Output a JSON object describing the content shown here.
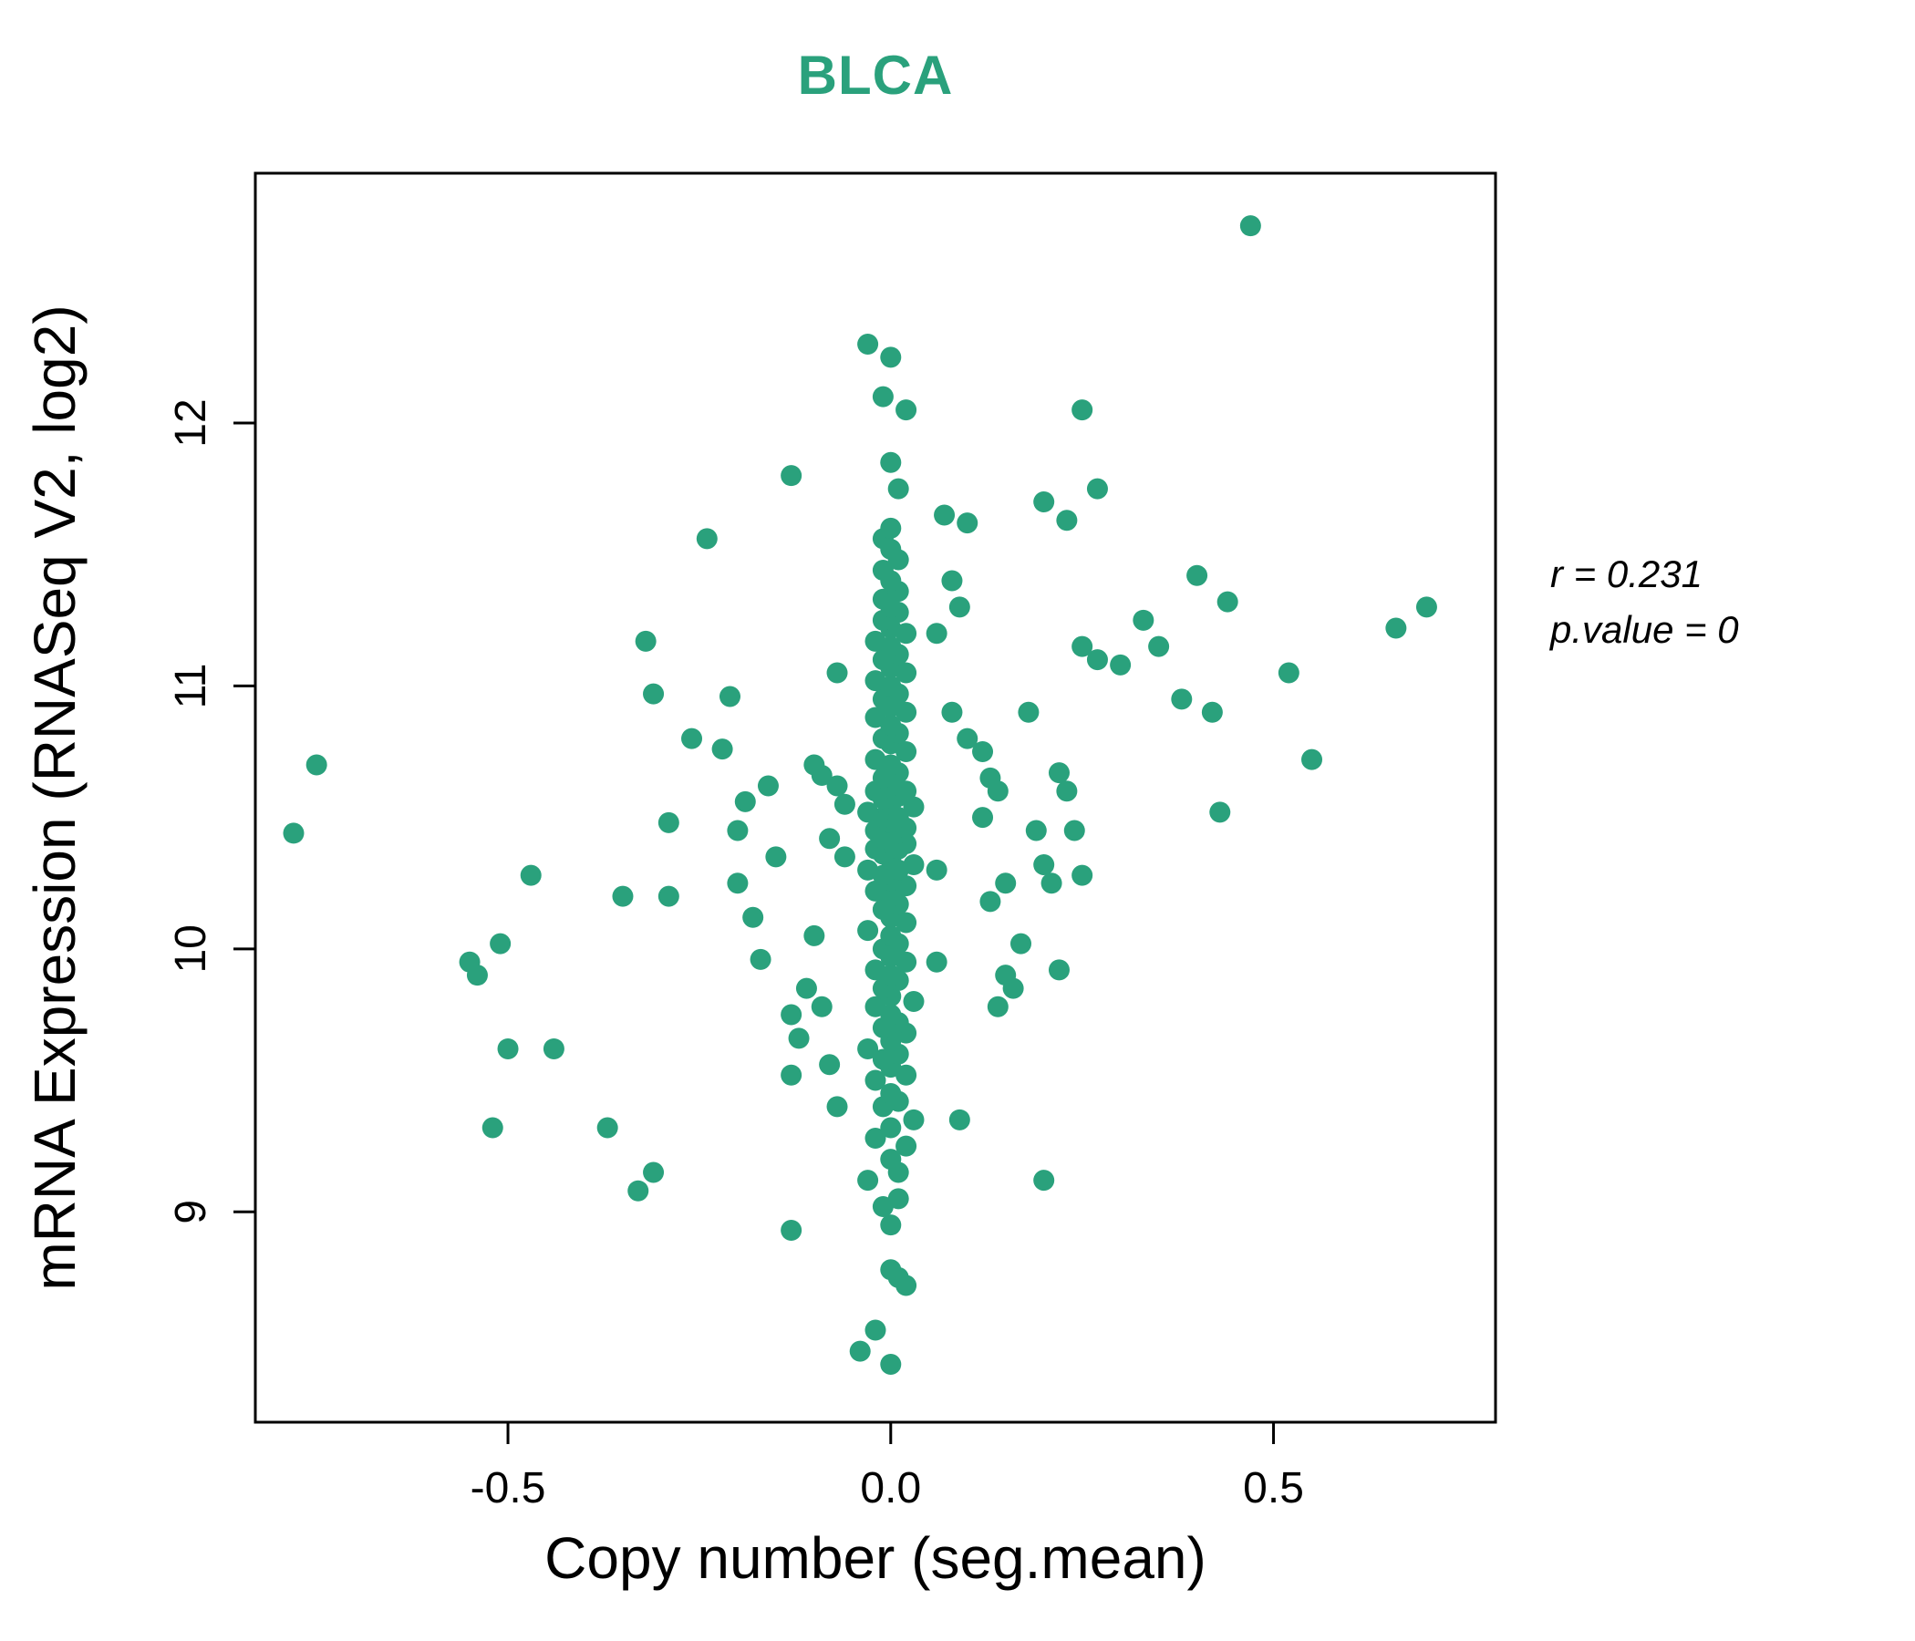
{
  "title": "BLCA",
  "colors": {
    "accent": "#2aa17c",
    "point": "#2aa17c",
    "frame": "#000000",
    "text": "#000000"
  },
  "annotation": {
    "line1": "r = 0.231",
    "line2": "p.value = 0"
  },
  "chart_data": {
    "type": "scatter",
    "title": "BLCA",
    "xlabel": "Copy number (seg.mean)",
    "ylabel": "mRNA Expression (RNASeq V2, log2)",
    "xlim": [
      -0.83,
      0.79
    ],
    "ylim": [
      8.2,
      12.95
    ],
    "xticks": [
      -0.5,
      0.0,
      0.5
    ],
    "xtick_labels": [
      "-0.5",
      "0.0",
      "0.5"
    ],
    "yticks": [
      9,
      10,
      11,
      12
    ],
    "ytick_labels": [
      "9",
      "10",
      "11",
      "12"
    ],
    "grid": false,
    "legend": "none",
    "annotations": [
      "r = 0.231",
      "p.value = 0"
    ],
    "point_color": "#2aa17c",
    "points": [
      [
        -0.78,
        10.44
      ],
      [
        -0.75,
        10.7
      ],
      [
        -0.55,
        9.95
      ],
      [
        -0.54,
        9.9
      ],
      [
        -0.51,
        10.02
      ],
      [
        -0.52,
        9.32
      ],
      [
        -0.5,
        9.62
      ],
      [
        -0.47,
        10.28
      ],
      [
        -0.44,
        9.62
      ],
      [
        -0.37,
        9.32
      ],
      [
        -0.35,
        10.2
      ],
      [
        -0.33,
        9.08
      ],
      [
        -0.31,
        9.15
      ],
      [
        -0.32,
        11.17
      ],
      [
        -0.31,
        10.97
      ],
      [
        -0.29,
        10.48
      ],
      [
        -0.29,
        10.2
      ],
      [
        -0.26,
        10.8
      ],
      [
        -0.24,
        11.56
      ],
      [
        -0.22,
        10.76
      ],
      [
        -0.21,
        10.96
      ],
      [
        -0.2,
        10.45
      ],
      [
        -0.2,
        10.25
      ],
      [
        -0.19,
        10.56
      ],
      [
        -0.18,
        10.12
      ],
      [
        -0.17,
        9.96
      ],
      [
        -0.16,
        10.62
      ],
      [
        -0.15,
        10.35
      ],
      [
        -0.13,
        11.8
      ],
      [
        -0.13,
        9.75
      ],
      [
        -0.12,
        9.66
      ],
      [
        -0.13,
        9.52
      ],
      [
        -0.13,
        8.93
      ],
      [
        -0.11,
        9.85
      ],
      [
        -0.1,
        10.7
      ],
      [
        -0.1,
        10.05
      ],
      [
        -0.09,
        10.66
      ],
      [
        -0.09,
        9.78
      ],
      [
        -0.08,
        10.42
      ],
      [
        -0.08,
        9.56
      ],
      [
        -0.07,
        11.05
      ],
      [
        -0.07,
        10.62
      ],
      [
        -0.06,
        10.55
      ],
      [
        -0.06,
        10.35
      ],
      [
        -0.07,
        9.4
      ],
      [
        0.0,
        8.42
      ],
      [
        -0.04,
        8.47
      ],
      [
        -0.02,
        8.55
      ],
      [
        0.01,
        8.75
      ],
      [
        0.02,
        8.72
      ],
      [
        0.0,
        8.78
      ],
      [
        0.0,
        8.95
      ],
      [
        -0.01,
        9.02
      ],
      [
        0.01,
        9.05
      ],
      [
        -0.03,
        9.12
      ],
      [
        0.01,
        9.15
      ],
      [
        0.0,
        9.2
      ],
      [
        0.02,
        9.25
      ],
      [
        -0.02,
        9.28
      ],
      [
        0.0,
        9.32
      ],
      [
        0.03,
        9.35
      ],
      [
        -0.01,
        9.4
      ],
      [
        0.01,
        9.42
      ],
      [
        0.0,
        9.45
      ],
      [
        -0.02,
        9.5
      ],
      [
        0.02,
        9.52
      ],
      [
        0.0,
        9.55
      ],
      [
        -0.01,
        9.58
      ],
      [
        0.01,
        9.6
      ],
      [
        -0.03,
        9.62
      ],
      [
        0.0,
        9.65
      ],
      [
        0.02,
        9.68
      ],
      [
        -0.01,
        9.7
      ],
      [
        0.01,
        9.72
      ],
      [
        0.0,
        9.75
      ],
      [
        -0.02,
        9.78
      ],
      [
        0.03,
        9.8
      ],
      [
        0.0,
        9.82
      ],
      [
        -0.01,
        9.85
      ],
      [
        0.01,
        9.88
      ],
      [
        0.0,
        9.9
      ],
      [
        -0.02,
        9.92
      ],
      [
        0.02,
        9.95
      ],
      [
        0.0,
        9.97
      ],
      [
        -0.01,
        10.0
      ],
      [
        0.01,
        10.02
      ],
      [
        0.0,
        10.05
      ],
      [
        -0.03,
        10.07
      ],
      [
        0.02,
        10.1
      ],
      [
        0.0,
        10.12
      ],
      [
        -0.01,
        10.15
      ],
      [
        0.01,
        10.17
      ],
      [
        0.0,
        10.2
      ],
      [
        -0.02,
        10.22
      ],
      [
        0.02,
        10.24
      ],
      [
        0.0,
        10.26
      ],
      [
        -0.01,
        10.28
      ],
      [
        0.01,
        10.3
      ],
      [
        -0.03,
        10.3
      ],
      [
        0.03,
        10.32
      ],
      [
        0.0,
        10.34
      ],
      [
        -0.01,
        10.36
      ],
      [
        0.01,
        10.38
      ],
      [
        -0.02,
        10.38
      ],
      [
        0.02,
        10.4
      ],
      [
        0.0,
        10.4
      ],
      [
        -0.01,
        10.42
      ],
      [
        0.01,
        10.44
      ],
      [
        -0.02,
        10.45
      ],
      [
        0.02,
        10.46
      ],
      [
        0.0,
        10.48
      ],
      [
        -0.01,
        10.5
      ],
      [
        0.01,
        10.5
      ],
      [
        -0.03,
        10.52
      ],
      [
        0.03,
        10.54
      ],
      [
        0.0,
        10.55
      ],
      [
        -0.01,
        10.57
      ],
      [
        0.01,
        10.58
      ],
      [
        -0.02,
        10.6
      ],
      [
        0.02,
        10.6
      ],
      [
        0.0,
        10.62
      ],
      [
        -0.01,
        10.65
      ],
      [
        0.01,
        10.67
      ],
      [
        0.0,
        10.7
      ],
      [
        -0.02,
        10.72
      ],
      [
        0.02,
        10.75
      ],
      [
        0.0,
        10.78
      ],
      [
        -0.01,
        10.8
      ],
      [
        0.01,
        10.82
      ],
      [
        0.0,
        10.85
      ],
      [
        -0.02,
        10.88
      ],
      [
        0.02,
        10.9
      ],
      [
        0.0,
        10.92
      ],
      [
        -0.01,
        10.95
      ],
      [
        0.01,
        10.97
      ],
      [
        0.0,
        11.0
      ],
      [
        -0.02,
        11.02
      ],
      [
        0.02,
        11.05
      ],
      [
        0.0,
        11.07
      ],
      [
        -0.01,
        11.1
      ],
      [
        0.01,
        11.12
      ],
      [
        0.0,
        11.15
      ],
      [
        -0.02,
        11.17
      ],
      [
        0.02,
        11.2
      ],
      [
        0.0,
        11.22
      ],
      [
        -0.01,
        11.25
      ],
      [
        0.01,
        11.28
      ],
      [
        0.0,
        11.3
      ],
      [
        -0.01,
        11.33
      ],
      [
        0.01,
        11.36
      ],
      [
        0.0,
        11.4
      ],
      [
        -0.01,
        11.44
      ],
      [
        0.01,
        11.48
      ],
      [
        0.0,
        11.52
      ],
      [
        -0.01,
        11.56
      ],
      [
        0.0,
        11.6
      ],
      [
        0.01,
        11.75
      ],
      [
        0.0,
        11.85
      ],
      [
        0.02,
        12.05
      ],
      [
        -0.01,
        12.1
      ],
      [
        0.0,
        12.25
      ],
      [
        -0.03,
        12.3
      ],
      [
        0.06,
        11.2
      ],
      [
        0.06,
        10.3
      ],
      [
        0.06,
        9.95
      ],
      [
        0.07,
        11.65
      ],
      [
        0.08,
        11.4
      ],
      [
        0.09,
        11.3
      ],
      [
        0.1,
        11.62
      ],
      [
        0.08,
        10.9
      ],
      [
        0.1,
        10.8
      ],
      [
        0.12,
        10.75
      ],
      [
        0.13,
        10.65
      ],
      [
        0.14,
        10.6
      ],
      [
        0.12,
        10.5
      ],
      [
        0.15,
        10.25
      ],
      [
        0.13,
        10.18
      ],
      [
        0.16,
        9.85
      ],
      [
        0.14,
        9.78
      ],
      [
        0.09,
        9.35
      ],
      [
        0.15,
        9.9
      ],
      [
        0.17,
        10.02
      ],
      [
        0.18,
        10.9
      ],
      [
        0.19,
        10.45
      ],
      [
        0.2,
        10.32
      ],
      [
        0.21,
        10.25
      ],
      [
        0.22,
        9.92
      ],
      [
        0.23,
        10.6
      ],
      [
        0.22,
        10.67
      ],
      [
        0.24,
        10.45
      ],
      [
        0.25,
        10.28
      ],
      [
        0.2,
        11.7
      ],
      [
        0.23,
        11.63
      ],
      [
        0.25,
        12.05
      ],
      [
        0.27,
        11.75
      ],
      [
        0.25,
        11.15
      ],
      [
        0.27,
        11.1
      ],
      [
        0.3,
        11.08
      ],
      [
        0.33,
        11.25
      ],
      [
        0.35,
        11.15
      ],
      [
        0.38,
        10.95
      ],
      [
        0.4,
        11.42
      ],
      [
        0.42,
        10.9
      ],
      [
        0.44,
        11.32
      ],
      [
        0.43,
        10.52
      ],
      [
        0.47,
        12.75
      ],
      [
        0.52,
        11.05
      ],
      [
        0.55,
        10.72
      ],
      [
        0.66,
        11.22
      ],
      [
        0.7,
        11.3
      ],
      [
        0.2,
        9.12
      ]
    ]
  }
}
